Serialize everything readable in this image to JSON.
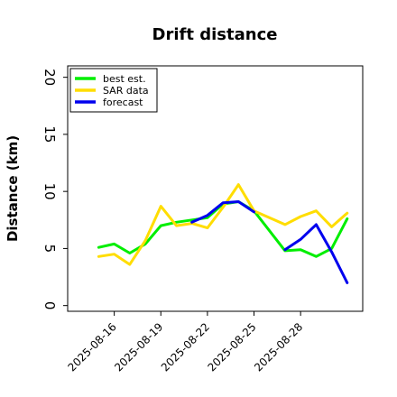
{
  "chart_data": {
    "type": "line",
    "title": "Drift distance",
    "xlabel": "",
    "ylabel": "Distance (km)",
    "ylim": [
      -0.5,
      21
    ],
    "yticks": [
      0,
      5,
      10,
      15,
      20
    ],
    "xlim": [
      "2025-08-13",
      "2025-09-01"
    ],
    "xticks": [
      "2025-08-16",
      "2025-08-19",
      "2025-08-22",
      "2025-08-25",
      "2025-08-28"
    ],
    "grid": false,
    "legend_position": "top-left",
    "series": [
      {
        "name": "best est.",
        "color": "#00ee00",
        "x": [
          "2025-08-15",
          "2025-08-16",
          "2025-08-17",
          "2025-08-18",
          "2025-08-19",
          "2025-08-20",
          "2025-08-21",
          "2025-08-22",
          "2025-08-23",
          "2025-08-24",
          "2025-08-25",
          "2025-08-27",
          "2025-08-28",
          "2025-08-29",
          "2025-08-30",
          "2025-08-31"
        ],
        "y": [
          5.1,
          5.4,
          4.6,
          5.4,
          7.0,
          7.3,
          7.5,
          7.7,
          8.9,
          9.1,
          8.3,
          4.8,
          4.9,
          4.3,
          5.0,
          7.6
        ]
      },
      {
        "name": "SAR data",
        "color": "#ffdd00",
        "x": [
          "2025-08-15",
          "2025-08-16",
          "2025-08-17",
          "2025-08-18",
          "2025-08-19",
          "2025-08-20",
          "2025-08-21",
          "2025-08-22",
          "2025-08-23",
          "2025-08-24",
          "2025-08-25",
          "2025-08-27",
          "2025-08-28",
          "2025-08-29",
          "2025-08-30",
          "2025-08-31"
        ],
        "y": [
          4.3,
          4.5,
          3.6,
          5.7,
          8.7,
          7.0,
          7.2,
          6.8,
          8.6,
          10.6,
          8.3,
          7.1,
          7.8,
          8.3,
          6.9,
          8.1
        ]
      },
      {
        "name": "forecast",
        "color": "#0000ee",
        "x": [
          "2025-08-21",
          "2025-08-22",
          "2025-08-23",
          "2025-08-24",
          "2025-08-25"
        ],
        "y": [
          7.3,
          7.9,
          9.0,
          9.1,
          8.2
        ]
      },
      {
        "name": "forecast",
        "color": "#0000ee",
        "x": [
          "2025-08-27",
          "2025-08-28",
          "2025-08-29",
          "2025-08-30",
          "2025-08-31"
        ],
        "y": [
          4.9,
          5.8,
          7.1,
          4.7,
          2.0
        ]
      }
    ]
  }
}
